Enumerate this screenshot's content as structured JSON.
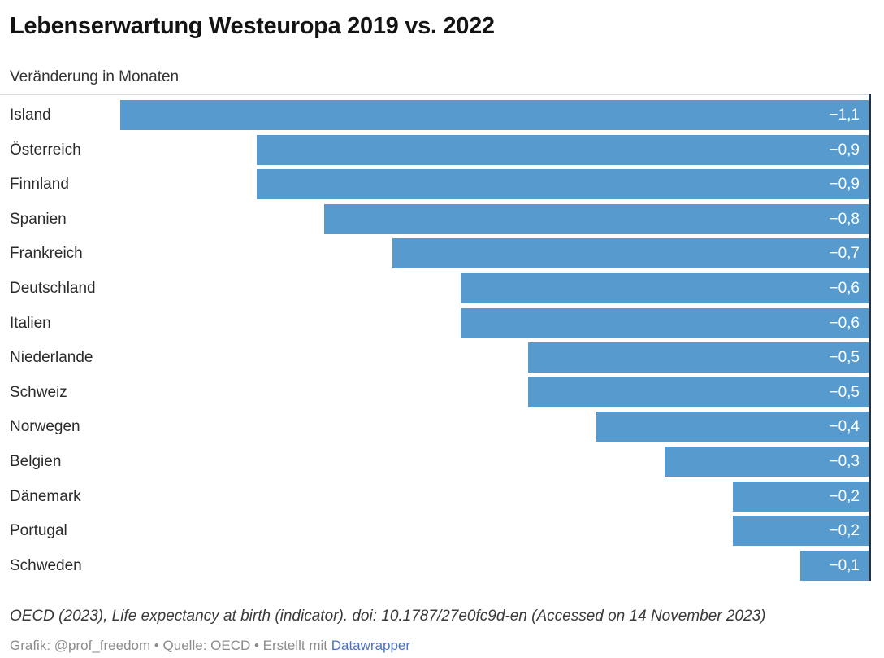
{
  "chart_data": {
    "type": "bar",
    "orientation": "horizontal",
    "title": "Lebenserwartung Westeuropa 2019 vs. 2022",
    "subtitle": "Veränderung in Monaten",
    "categories": [
      "Island",
      "Österreich",
      "Finnland",
      "Spanien",
      "Frankreich",
      "Deutschland",
      "Italien",
      "Niederlande",
      "Schweiz",
      "Norwegen",
      "Belgien",
      "Dänemark",
      "Portugal",
      "Schweden"
    ],
    "values": [
      -1.1,
      -0.9,
      -0.9,
      -0.8,
      -0.7,
      -0.6,
      -0.6,
      -0.5,
      -0.5,
      -0.4,
      -0.3,
      -0.2,
      -0.2,
      -0.1
    ],
    "value_labels": [
      "−1,1",
      "−0,9",
      "−0,9",
      "−0,8",
      "−0,7",
      "−0,6",
      "−0,6",
      "−0,5",
      "−0,5",
      "−0,4",
      "−0,3",
      "−0,2",
      "−0,2",
      "−0,1"
    ],
    "xlim": [
      -1.1,
      0
    ],
    "grid": false,
    "legend": false,
    "bar_color": "#579acd",
    "zero_axis_color": "#203243",
    "top_rule_color": "#d7dadc",
    "value_label_color": "#ffffff"
  },
  "footer": {
    "source": "OECD (2023), Life expectancy at birth (indicator). doi: 10.1787/27e0fc9d-en (Accessed on 14 November 2023)",
    "byline_prefix": "Grafik: @prof_freedom • Quelle: OECD • Erstellt mit ",
    "link_label": "Datawrapper",
    "link_color": "#4a72c7"
  }
}
